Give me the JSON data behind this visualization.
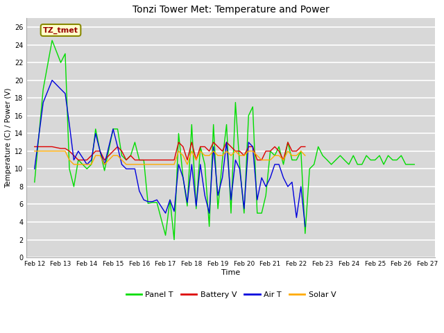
{
  "title": "Tonzi Tower Met: Temperature and Power",
  "xlabel": "Time",
  "ylabel": "Temperature (C) / Power (V)",
  "ylim": [
    0,
    27
  ],
  "yticks": [
    0,
    2,
    4,
    6,
    8,
    10,
    12,
    14,
    16,
    18,
    20,
    22,
    24,
    26
  ],
  "x_labels": [
    "Feb 12",
    "Feb 13",
    "Feb 14",
    "Feb 15",
    "Feb 16",
    "Feb 17",
    "Feb 18",
    "Feb 19",
    "Feb 20",
    "Feb 21",
    "Feb 22",
    "Feb 23",
    "Feb 24",
    "Feb 25",
    "Feb 26",
    "Feb 27"
  ],
  "fig_bg_color": "#ffffff",
  "plot_bg_color": "#d8d8d8",
  "grid_color": "#ffffff",
  "legend_label": "TZ_tmet",
  "legend_box_facecolor": "#ffffcc",
  "legend_box_edgecolor": "#888800",
  "legend_text_color": "#990000",
  "series": {
    "Panel T": {
      "color": "#00dd00",
      "x": [
        0,
        0.33,
        0.67,
        1,
        1.17,
        1.33,
        1.5,
        1.67,
        2,
        2.17,
        2.33,
        2.5,
        2.67,
        3,
        3.17,
        3.33,
        3.5,
        3.67,
        3.83,
        4,
        4.17,
        4.33,
        4.5,
        4.67,
        5,
        5.17,
        5.33,
        5.5,
        5.67,
        5.83,
        6,
        6.17,
        6.33,
        6.5,
        6.67,
        6.83,
        7,
        7.17,
        7.33,
        7.5,
        7.67,
        7.83,
        8,
        8.17,
        8.33,
        8.5,
        8.67,
        8.83,
        9,
        9.17,
        9.33,
        9.5,
        9.67,
        9.83,
        10,
        10.17,
        10.33,
        10.5,
        10.67,
        10.83,
        11,
        11.17,
        11.33,
        11.5,
        11.67,
        11.83,
        12,
        12.17,
        12.33,
        12.5,
        12.67,
        12.83,
        13,
        13.17,
        13.33,
        13.5,
        13.67,
        13.83,
        14,
        14.17,
        14.33,
        14.5
      ],
      "y": [
        8.5,
        19,
        24.5,
        22,
        23,
        10,
        8.0,
        11,
        10,
        10.5,
        14.5,
        12,
        9.8,
        14.5,
        14.5,
        11.5,
        11,
        11.5,
        13,
        11,
        11,
        6.1,
        6.2,
        6.2,
        2.5,
        6.5,
        2.0,
        14,
        9.0,
        5.8,
        15,
        5.5,
        12.5,
        10.5,
        3.5,
        15,
        5.5,
        11,
        15,
        5.0,
        17.5,
        10.5,
        5.0,
        16,
        17,
        5.0,
        5.0,
        7.0,
        12,
        11.5,
        12.5,
        10.5,
        13,
        11,
        11,
        12,
        2.7,
        10,
        10.5,
        12.5,
        11.5,
        11,
        10.5,
        11,
        11.5,
        11,
        10.5,
        11.5,
        10.5,
        10.5,
        11.5,
        11,
        11,
        11.5,
        10.5,
        11.5,
        11,
        11,
        11.5,
        10.5,
        10.5,
        10.5
      ]
    },
    "Battery V": {
      "color": "#dd0000",
      "x": [
        0,
        0.33,
        0.67,
        1,
        1.17,
        1.33,
        1.5,
        1.67,
        2,
        2.17,
        2.33,
        2.5,
        2.67,
        3,
        3.17,
        3.33,
        3.5,
        3.67,
        3.83,
        4,
        4.17,
        4.33,
        4.5,
        4.67,
        5,
        5.17,
        5.33,
        5.5,
        5.67,
        5.83,
        6,
        6.17,
        6.33,
        6.5,
        6.67,
        6.83,
        7,
        7.17,
        7.33,
        7.5,
        7.67,
        7.83,
        8,
        8.17,
        8.33,
        8.5,
        8.67,
        8.83,
        9,
        9.17,
        9.33,
        9.5,
        9.67,
        9.83,
        10,
        10.17,
        10.33
      ],
      "y": [
        12.5,
        12.5,
        12.5,
        12.3,
        12.3,
        12.0,
        11.5,
        11.0,
        11.0,
        11.5,
        12.0,
        12.0,
        11.0,
        12.0,
        12.5,
        12.0,
        11.0,
        11.5,
        11.0,
        11.0,
        11.0,
        11.0,
        11.0,
        11.0,
        11.0,
        11.0,
        11.0,
        13.0,
        12.5,
        11.0,
        13.0,
        11.0,
        12.5,
        12.5,
        12.0,
        13.0,
        12.5,
        12.0,
        13.0,
        12.5,
        12.0,
        12.0,
        11.5,
        12.5,
        12.5,
        11.0,
        11.0,
        12.0,
        12.0,
        12.5,
        12.0,
        11.0,
        13.0,
        12.0,
        12.0,
        12.5,
        12.5
      ]
    },
    "Air T": {
      "color": "#0000dd",
      "x": [
        0,
        0.33,
        0.67,
        1,
        1.17,
        1.33,
        1.5,
        1.67,
        2,
        2.17,
        2.33,
        2.5,
        2.67,
        3,
        3.17,
        3.33,
        3.5,
        3.67,
        3.83,
        4,
        4.17,
        4.33,
        4.5,
        4.67,
        5,
        5.17,
        5.33,
        5.5,
        5.67,
        5.83,
        6,
        6.17,
        6.33,
        6.5,
        6.67,
        6.83,
        7,
        7.17,
        7.33,
        7.5,
        7.67,
        7.83,
        8,
        8.17,
        8.33,
        8.5,
        8.67,
        8.83,
        9,
        9.17,
        9.33,
        9.5,
        9.67,
        9.83,
        10,
        10.17,
        10.33
      ],
      "y": [
        10,
        17.5,
        20,
        19,
        18.5,
        15.0,
        11.0,
        12.0,
        10.5,
        11.0,
        14.0,
        12.0,
        10.5,
        14.5,
        12.5,
        10.5,
        10.0,
        10.0,
        10.0,
        7.5,
        6.5,
        6.3,
        6.3,
        6.5,
        5.0,
        6.5,
        5.2,
        10.5,
        9.0,
        6.2,
        10.5,
        5.8,
        10.5,
        7.0,
        5.0,
        12.5,
        7.0,
        9.0,
        13.0,
        6.5,
        11.0,
        10.0,
        5.5,
        13.0,
        12.5,
        6.5,
        9.0,
        8.0,
        9.0,
        10.5,
        10.5,
        9.0,
        8.0,
        8.5,
        4.5,
        8.0,
        3.5
      ]
    },
    "Solar V": {
      "color": "#ffaa00",
      "x": [
        0,
        0.33,
        0.67,
        1,
        1.17,
        1.33,
        1.5,
        1.67,
        2,
        2.17,
        2.33,
        2.5,
        2.67,
        3,
        3.17,
        3.33,
        3.5,
        3.67,
        3.83,
        4,
        4.17,
        4.33,
        4.5,
        4.67,
        5,
        5.17,
        5.33,
        5.5,
        5.67,
        5.83,
        6,
        6.17,
        6.33,
        6.5,
        6.67,
        6.83,
        7,
        7.17,
        7.33,
        7.5,
        7.67,
        7.83,
        8,
        8.17,
        8.33,
        8.5,
        8.67,
        8.83,
        9,
        9.17,
        9.33,
        9.5,
        9.67,
        9.83,
        10,
        10.17,
        10.33
      ],
      "y": [
        12,
        12,
        12,
        12,
        12,
        11.0,
        10.5,
        10.5,
        10.5,
        10.5,
        11.5,
        11.5,
        10.5,
        11.5,
        11.5,
        11.0,
        10.5,
        10.5,
        10.5,
        10.5,
        10.5,
        10.5,
        10.5,
        10.5,
        10.5,
        10.5,
        10.5,
        12.0,
        11.5,
        10.5,
        12.0,
        11.0,
        12.0,
        11.5,
        11.5,
        12.0,
        11.5,
        11.5,
        12.0,
        11.5,
        12.0,
        11.5,
        11.5,
        12.0,
        12.0,
        11.5,
        11.0,
        11.0,
        11.0,
        11.5,
        11.5,
        11.0,
        12.0,
        11.5,
        11.5,
        12.0,
        11.5
      ]
    }
  }
}
